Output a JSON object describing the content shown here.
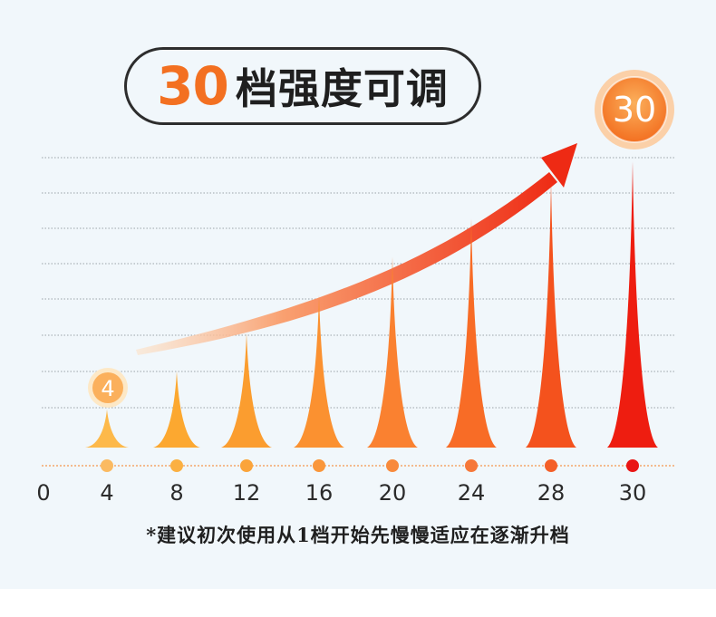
{
  "title": {
    "number": "30",
    "text": "档强度可调"
  },
  "footnote": "*建议初次使用从1档开始先慢慢适应在逐渐升档",
  "chart_data": {
    "type": "bar",
    "categories": [
      "4",
      "8",
      "12",
      "16",
      "20",
      "24",
      "28",
      "30"
    ],
    "values": [
      4,
      8,
      12,
      16,
      20,
      24,
      28,
      30
    ],
    "x_ticks": [
      "0",
      "4",
      "8",
      "12",
      "16",
      "20",
      "24",
      "28",
      "30"
    ],
    "ylim": [
      0,
      30
    ],
    "grid": true,
    "start_badge": "4",
    "end_badge": "30",
    "colors": [
      "#fdb94a",
      "#fca830",
      "#fb9d2f",
      "#fb9130",
      "#fa8130",
      "#f86c26",
      "#f4521d",
      "#ee1d10"
    ],
    "dot_colors": [
      "#fbba61",
      "#fbb042",
      "#fba43a",
      "#fa963a",
      "#f88a3c",
      "#f6783a",
      "#f45f28",
      "#e91515"
    ],
    "arrow_color": "#ee2a14",
    "badge_color": "#f37021"
  }
}
